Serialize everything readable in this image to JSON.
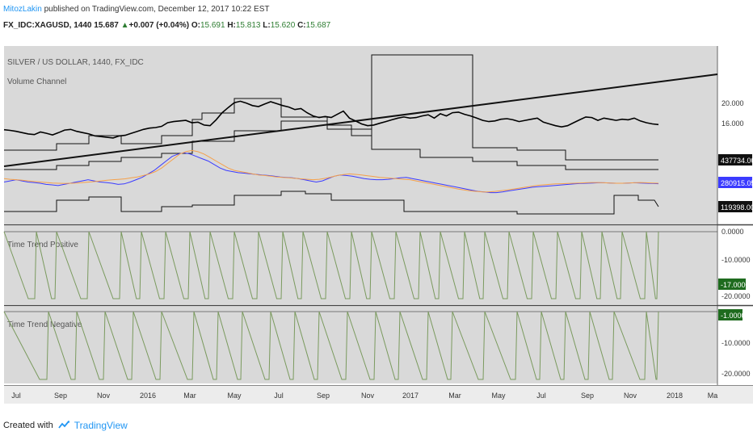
{
  "header": {
    "author": "MitozLakin",
    "published_text": " published on TradingView.com, December 12, 2017 10:22 EST",
    "symbol": "FX_IDC:XAGUSD, 1440",
    "last": "15.687",
    "change": "+0.007 (+0.04%)",
    "o_label": "O:",
    "o_value": "15.691",
    "h_label": "H:",
    "h_value": "15.813",
    "l_label": "L:",
    "l_value": "15.620",
    "c_label": "C:",
    "c_value": "15.687"
  },
  "footer": {
    "created_with": "Created with",
    "brand": "TradingView"
  },
  "colors": {
    "pane_bg": "#d9d9d9",
    "price": "#000000",
    "blue_ma": "#3b3bff",
    "orange_ma": "#f5a04a",
    "trend_green": "#7a9a5e",
    "badge_green": "#1e6b1e"
  },
  "chart_data": [
    {
      "type": "line",
      "title": "SILVER / US DOLLAR, 1440, FX_IDC",
      "indicator": "Volume Channel",
      "y_scale": "log",
      "x_ticks": [
        "Jul",
        "Sep",
        "Nov",
        "2016",
        "Mar",
        "May",
        "Jul",
        "Sep",
        "Nov",
        "2017",
        "Mar",
        "May",
        "Jul",
        "Sep",
        "Nov",
        "2018",
        "Ma"
      ],
      "y_ticks": [
        "20.000",
        "16.000"
      ],
      "price_badges": [
        "437734.0000",
        "280915.0526",
        "119398.0000"
      ],
      "series": [
        {
          "values": [
            14.85,
            14.75,
            14.6,
            14.4,
            14.2,
            14.1,
            14.5,
            14.3,
            14.05,
            14.4,
            14.8,
            14.9,
            14.6,
            14.4,
            14.2,
            13.9,
            13.8,
            13.7,
            13.6,
            13.9,
            14.0,
            14.3,
            14.6,
            14.9,
            15.1,
            15.2,
            15.4,
            16.0,
            16.2,
            16.3,
            16.4,
            16.0,
            16.1,
            15.6,
            15.5,
            16.5,
            17.8,
            18.8,
            19.8,
            20.1,
            19.7,
            19.2,
            19.0,
            19.5,
            20.0,
            19.6,
            19.2,
            18.9,
            18.4,
            18.6,
            17.8,
            17.2,
            16.9,
            17.1,
            16.9,
            17.5,
            18.1,
            16.8,
            16.3,
            15.8,
            15.5,
            15.6,
            15.9,
            16.2,
            16.5,
            16.8,
            17.0,
            16.8,
            16.9,
            17.2,
            17.4,
            16.8,
            17.6,
            17.2,
            17.8,
            17.9,
            17.5,
            17.2,
            16.8,
            16.4,
            16.2,
            16.3,
            16.6,
            16.7,
            16.5,
            16.2,
            16.4,
            16.6,
            16.8,
            16.1,
            15.8,
            15.5,
            15.3,
            15.5,
            16.0,
            16.5,
            17.0,
            16.9,
            16.4,
            16.8,
            16.6,
            16.4,
            16.6,
            16.5,
            16.8,
            16.3,
            16.0,
            15.8,
            15.69
          ]
        },
        {
          "values": [
            3.0,
            3.05,
            3.1,
            3.05,
            3.0,
            2.98,
            2.95,
            2.9,
            2.88,
            2.85,
            2.9,
            2.95,
            3.0,
            3.05,
            3.1,
            3.05,
            3.0,
            2.98,
            2.95,
            2.9,
            2.92,
            3.0,
            3.1,
            3.2,
            3.35,
            3.5,
            3.7,
            3.9,
            4.1,
            4.2,
            4.25,
            4.2,
            4.1,
            4.0,
            3.9,
            3.75,
            3.6,
            3.5,
            3.45,
            3.4,
            3.38,
            3.35,
            3.33,
            3.3,
            3.28,
            3.25,
            3.22,
            3.2,
            3.18,
            3.15,
            3.1,
            3.05,
            3.0,
            3.05,
            3.15,
            3.25,
            3.3,
            3.28,
            3.25,
            3.2,
            3.15,
            3.12,
            3.1,
            3.1,
            3.12,
            3.15,
            3.18,
            3.2,
            3.15,
            3.1,
            3.05,
            3.0,
            2.95,
            2.9,
            2.85,
            2.8,
            2.75,
            2.7,
            2.65,
            2.6,
            2.58,
            2.55,
            2.55,
            2.58,
            2.62,
            2.66,
            2.7,
            2.74,
            2.78,
            2.8,
            2.82,
            2.84,
            2.86,
            2.88,
            2.9,
            2.92,
            2.94,
            2.95,
            2.96,
            2.97,
            2.97,
            2.96,
            2.95,
            2.95,
            2.96,
            2.97,
            2.96,
            2.95,
            2.94,
            2.93
          ]
        },
        {
          "values": [
            3.15,
            3.12,
            3.1,
            3.08,
            3.05,
            3.02,
            3.0,
            2.98,
            2.96,
            2.95,
            2.94,
            2.95,
            2.96,
            2.98,
            3.0,
            3.02,
            3.05,
            3.08,
            3.1,
            3.12,
            3.14,
            3.18,
            3.22,
            3.28,
            3.35,
            3.45,
            3.6,
            3.8,
            4.0,
            4.2,
            4.3,
            4.35,
            4.3,
            4.2,
            4.05,
            3.9,
            3.75,
            3.6,
            3.5,
            3.45,
            3.4,
            3.35,
            3.3,
            3.28,
            3.25,
            3.22,
            3.2,
            3.18,
            3.16,
            3.14,
            3.12,
            3.1,
            3.12,
            3.16,
            3.22,
            3.28,
            3.32,
            3.35,
            3.33,
            3.3,
            3.27,
            3.24,
            3.2,
            3.18,
            3.16,
            3.14,
            3.12,
            3.1,
            3.05,
            3.0,
            2.95,
            2.9,
            2.85,
            2.8,
            2.75,
            2.7,
            2.66,
            2.62,
            2.6,
            2.58,
            2.58,
            2.6,
            2.63,
            2.66,
            2.7,
            2.74,
            2.78,
            2.82,
            2.86,
            2.88,
            2.9,
            2.92,
            2.93,
            2.94,
            2.95,
            2.96,
            2.97,
            2.98,
            2.98,
            2.97,
            2.96,
            2.95,
            2.95,
            2.96,
            2.97,
            2.98,
            2.97,
            2.96,
            2.95
          ]
        }
      ]
    },
    {
      "type": "line",
      "title": "Time Trend Positive",
      "y_ticks": [
        "0.0000",
        "-10.0000",
        "-20.0000"
      ],
      "ylim": [
        -21,
        1
      ],
      "current_value": "-17.0000"
    },
    {
      "type": "line",
      "title": "Time Trend Negative",
      "y_ticks": [
        "-10.0000",
        "-20.0000"
      ],
      "ylim": [
        -22,
        0
      ],
      "current_value": "-1.0000"
    }
  ]
}
